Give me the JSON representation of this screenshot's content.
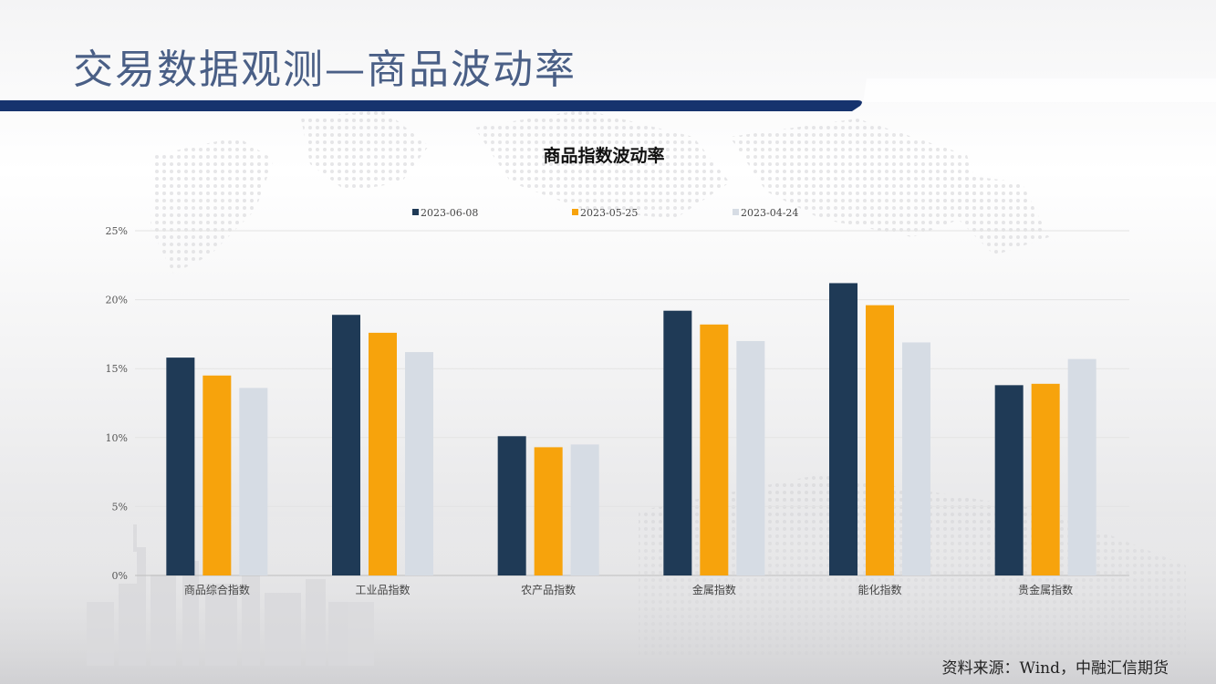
{
  "slide": {
    "title": "交易数据观测—商品波动率",
    "source": "资料来源：Wind，中融汇信期货"
  },
  "chart_data": {
    "type": "bar",
    "title": "商品指数波动率",
    "categories": [
      "商品综合指数",
      "工业品指数",
      "农产品指数",
      "金属指数",
      "能化指数",
      "贵金属指数"
    ],
    "series": [
      {
        "name": "2023-06-08",
        "color": "#1f3a56",
        "values": [
          15.8,
          18.9,
          10.1,
          19.2,
          21.2,
          13.8
        ]
      },
      {
        "name": "2023-05-25",
        "color": "#f7a30c",
        "values": [
          14.5,
          17.6,
          9.3,
          18.2,
          19.6,
          13.9
        ]
      },
      {
        "name": "2023-04-24",
        "color": "#d6dce4",
        "values": [
          13.6,
          16.2,
          9.5,
          17.0,
          16.9,
          15.7
        ]
      }
    ],
    "yticks": [
      "0%",
      "5%",
      "10%",
      "15%",
      "20%",
      "25%"
    ],
    "ylim": [
      0,
      25
    ],
    "xlabel": "",
    "ylabel": "",
    "grid": true,
    "legend_position": "top"
  }
}
